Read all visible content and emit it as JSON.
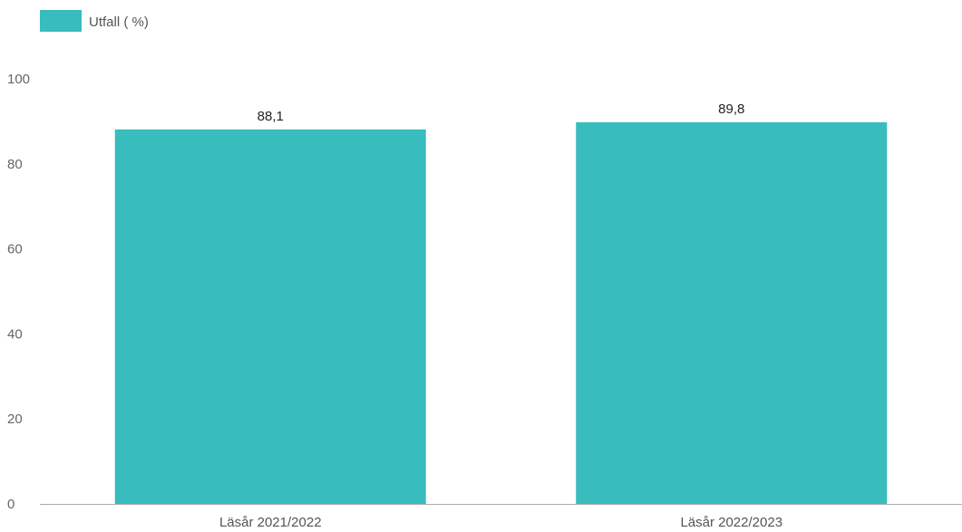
{
  "chart_data": {
    "type": "bar",
    "categories": [
      "Läsår 2021/2022",
      "Läsår 2022/2023"
    ],
    "series": [
      {
        "name": "Utfall ( %)",
        "values": [
          88.1,
          89.8
        ],
        "value_labels": [
          "88,1",
          "89,8"
        ],
        "color": "#38bcbd"
      }
    ],
    "title": "",
    "xlabel": "",
    "ylabel": "",
    "ylim": [
      0,
      100
    ],
    "yticks": [
      0,
      20,
      40,
      60,
      80,
      100
    ],
    "grid": false,
    "legend": "top-left"
  }
}
